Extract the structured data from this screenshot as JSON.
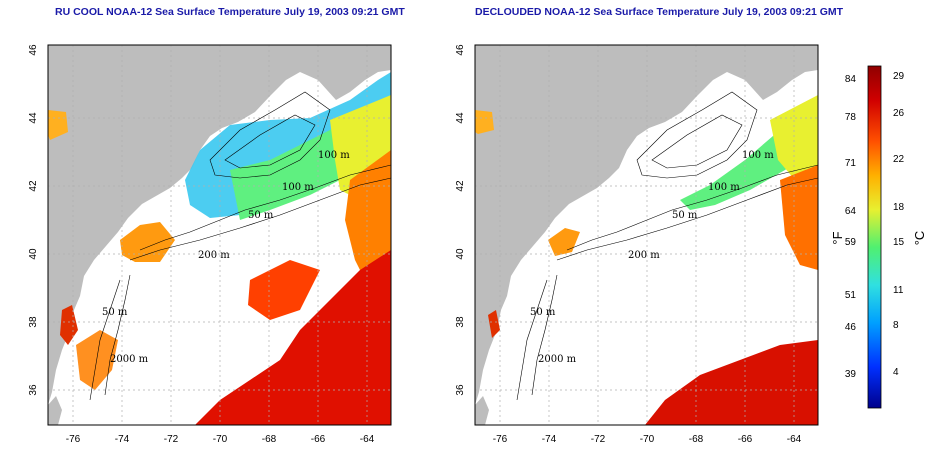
{
  "panels": [
    {
      "title": "RU COOL NOAA-12 Sea Surface Temperature July 19, 2003 09:21 GMT",
      "contour_labels": [
        "100 m",
        "100 m",
        "50 m",
        "200 m",
        "50 m",
        "2000 m"
      ]
    },
    {
      "title": "DECLOUDED NOAA-12 Sea Surface Temperature July 19, 2003 09:21 GMT",
      "contour_labels": [
        "100 m",
        "100 m",
        "50 m",
        "200 m",
        "50 m",
        "2000 m"
      ]
    }
  ],
  "axes": {
    "lon_ticks": [
      "-76",
      "-74",
      "-72",
      "-70",
      "-68",
      "-66",
      "-64"
    ],
    "lat_ticks": [
      "46",
      "44",
      "42",
      "40",
      "38",
      "36"
    ]
  },
  "colorbar": {
    "fahrenheit_unit": "°F",
    "celsius_unit": "°C",
    "fahrenheit_ticks": [
      "84",
      "78",
      "71",
      "64",
      "59",
      "51",
      "46",
      "39"
    ],
    "celsius_ticks": [
      "29",
      "26",
      "22",
      "18",
      "15",
      "11",
      "8",
      "4"
    ],
    "colors": [
      "#00008c",
      "#0030ff",
      "#00a0ff",
      "#30e0e0",
      "#50f070",
      "#e8f030",
      "#ffb000",
      "#ff5000",
      "#d00000",
      "#900000"
    ]
  },
  "colors": {
    "land": "#bdbdbd",
    "ocean_cloud": "#ffffff",
    "grid": "#b0b0b0",
    "title": "#1a1aa8"
  }
}
